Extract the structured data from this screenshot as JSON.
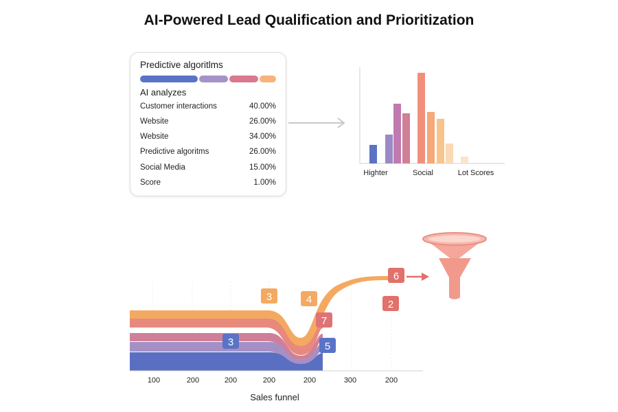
{
  "title": "AI-Powered Lead Qualification and Prioritization",
  "card": {
    "title": "Predictive algoritlms",
    "progress_colors": [
      "#5b73c6",
      "#a592c7",
      "#d9788f",
      "#f7b37a"
    ],
    "subtitle": "AI analyzes",
    "rows": [
      {
        "label": "Customer interactions",
        "value": "40.00%"
      },
      {
        "label": "Website",
        "value": "26.00%"
      },
      {
        "label": "Website",
        "value": "34.00%"
      },
      {
        "label": "Predictive algoritms",
        "value": "26.00%"
      },
      {
        "label": "Social Media",
        "value": "15.00%"
      },
      {
        "label": "Score",
        "value": "1.00%"
      }
    ]
  },
  "bar_chart": {
    "x_labels": [
      "Highter",
      "Social",
      "Lot Scores"
    ],
    "bars": [
      {
        "value": 27,
        "color": "#5b73c6"
      },
      {
        "value": 42,
        "color": "#9b89c6"
      },
      {
        "value": 87,
        "color": "#c07ab0"
      },
      {
        "value": 73,
        "color": "#cf7f96"
      },
      {
        "value": 132,
        "color": "#f0907c"
      },
      {
        "value": 75,
        "color": "#f5a878"
      },
      {
        "value": 65,
        "color": "#f7c48e"
      },
      {
        "value": 29,
        "color": "#fad9b5"
      },
      {
        "value": 10,
        "color": "#fbe3cc"
      }
    ],
    "y_max": 140
  },
  "funnel": {
    "x_tick_labels": [
      "100",
      "200",
      "200",
      "200",
      "200",
      "300",
      "200"
    ],
    "x_label": "Sales funnel",
    "badges": [
      {
        "text": "3",
        "color": "#f4a961"
      },
      {
        "text": "4",
        "color": "#f4a961"
      },
      {
        "text": "7",
        "color": "#de7476"
      },
      {
        "text": "3",
        "color": "#5b73c6"
      },
      {
        "text": "5",
        "color": "#5b73c6"
      },
      {
        "text": "6",
        "color": "#e0716b"
      },
      {
        "text": "2",
        "color": "#e0716b"
      }
    ],
    "band_colors": [
      "#f4a961",
      "#e8897d",
      "#cf7f9a",
      "#a590c6",
      "#5b6fc2"
    ],
    "funnel_color": "#ef9a8a"
  }
}
